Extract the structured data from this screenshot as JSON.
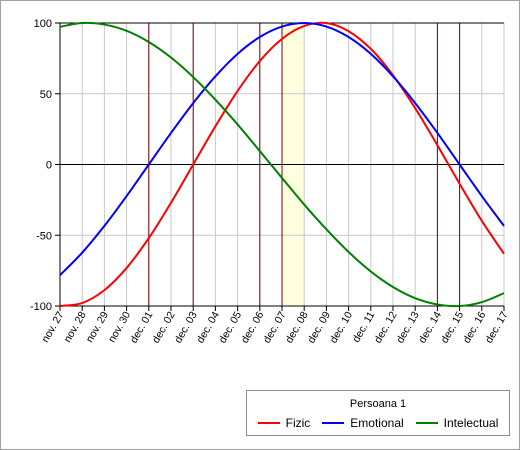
{
  "chart_data": {
    "type": "line",
    "legend_title": "Persoana 1",
    "legend_position": "bottom-right",
    "x_labels": [
      "nov. 27",
      "nov. 28",
      "nov. 29",
      "nov. 30",
      "dec. 01",
      "dec. 02",
      "dec. 03",
      "dec. 04",
      "dec. 05",
      "dec. 06",
      "dec. 07",
      "dec. 08",
      "dec. 09",
      "dec. 10",
      "dec. 11",
      "dec. 12",
      "dec. 13",
      "dec. 14",
      "dec. 15",
      "dec. 16",
      "dec. 17"
    ],
    "ylim": [
      -100,
      100
    ],
    "yticks": [
      -100,
      -50,
      0,
      50,
      100
    ],
    "grid": true,
    "highlight_band": {
      "from": "dec. 07",
      "to": "dec. 08",
      "color": "#ffffe0"
    },
    "markers": [
      "dec. 01",
      "dec. 03",
      "dec. 06",
      "dec. 07",
      "dec. 14",
      "dec. 15"
    ],
    "marker_color": "#800000",
    "series": [
      {
        "name": "Fizic",
        "color": "#ff0000",
        "values": [
          -100,
          -97.9,
          -88.8,
          -73.1,
          -52.0,
          -27.0,
          0.0,
          27.0,
          52.0,
          73.1,
          88.8,
          97.9,
          100,
          94.2,
          81.7,
          63.1,
          39.8,
          13.6,
          -13.6,
          -39.8,
          -63.1
        ]
      },
      {
        "name": "Emotional",
        "color": "#0000ff",
        "values": [
          -78.2,
          -62.3,
          -43.4,
          -22.3,
          0.0,
          22.3,
          43.4,
          62.3,
          78.2,
          90.1,
          97.5,
          100,
          97.5,
          90.1,
          78.2,
          62.3,
          43.4,
          22.3,
          0.0,
          -22.3,
          -43.4
        ]
      },
      {
        "name": "Intelectual",
        "color": "#008000",
        "values": [
          97.3,
          100,
          98.9,
          94.5,
          86.6,
          75.6,
          61.8,
          45.8,
          28.3,
          9.5,
          -9.5,
          -28.3,
          -45.8,
          -61.8,
          -75.6,
          -86.6,
          -94.5,
          -98.9,
          -100,
          -97.3,
          -90.9
        ]
      }
    ]
  }
}
